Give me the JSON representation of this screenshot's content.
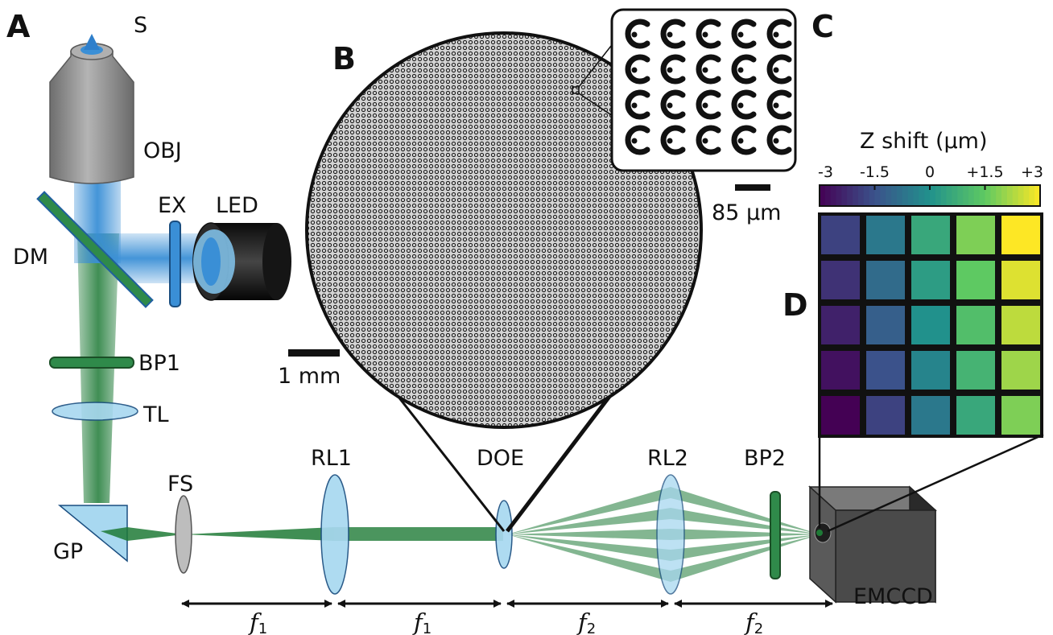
{
  "panels": {
    "a": "A",
    "b": "B",
    "c": "C",
    "d": "D"
  },
  "labels": {
    "sample": "S",
    "objective": "OBJ",
    "excitation_filter": "EX",
    "led": "LED",
    "dichroic": "DM",
    "bandpass1": "BP1",
    "tube_lens": "TL",
    "field_stop": "FS",
    "prism": "GP",
    "relay_lens1": "RL1",
    "doe": "DOE",
    "relay_lens2": "RL2",
    "bandpass2": "BP2",
    "camera": "EMCCD"
  },
  "scale_bars": {
    "main": "1 mm",
    "inset": "85 µm"
  },
  "colorbar": {
    "title": "Z shift (µm)",
    "ticks": [
      "-3",
      "-1.5",
      "0",
      "+1.5",
      "+3"
    ]
  },
  "distances": [
    {
      "f": "f",
      "sub": "1"
    },
    {
      "f": "f",
      "sub": "1"
    },
    {
      "f": "f",
      "sub": "2"
    },
    {
      "f": "f",
      "sub": "2"
    }
  ],
  "z_grid": [
    [
      -1.8,
      -0.6,
      0.6,
      1.8,
      3.0
    ],
    [
      -2.1,
      -0.9,
      0.3,
      1.5,
      2.7
    ],
    [
      -2.4,
      -1.2,
      0.0,
      1.2,
      2.4
    ],
    [
      -2.7,
      -1.5,
      -0.3,
      0.9,
      2.1
    ],
    [
      -3.0,
      -1.8,
      -0.6,
      0.6,
      1.8
    ]
  ],
  "colors": {
    "excitation": "#3a8fd6",
    "emission": "#1e7a36",
    "lens": "#a8d8f0",
    "objective": "#8a8a8a",
    "camera": "#3a3a3a"
  }
}
